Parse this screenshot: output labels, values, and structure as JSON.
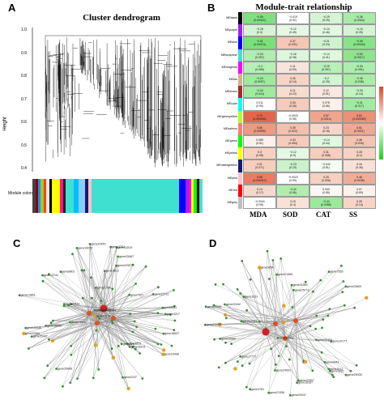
{
  "panels": {
    "a": {
      "letter": "A",
      "title": "Cluster dendrogram",
      "ylabel": "Height",
      "yticks": [
        "1.0",
        "0.9",
        "0.8",
        "0.7",
        "0.6",
        "0.5",
        "0.4"
      ],
      "module_label": "Module colors"
    },
    "b": {
      "letter": "B",
      "title": "Module-trait relationship",
      "columns": [
        "MDA",
        "SOD",
        "CAT",
        "SS"
      ],
      "scale_ticks": [
        "1",
        "0.5",
        "0",
        "-0.5",
        "-1"
      ],
      "rows": [
        {
          "name": "MEblack",
          "color": "#000000",
          "cells": [
            [
              "−0.59",
              "(0.00022)"
            ],
            [
              "−0.019",
              "(0.92)"
            ],
            [
              "−0.19",
              "(0.29)"
            ],
            [
              "−0.36",
              "(0.0064)"
            ]
          ],
          "fills": [
            "#7ee07e",
            "#ffffff",
            "#d4f4d4",
            "#a6eba6"
          ]
        },
        {
          "name": "MEpurple",
          "color": "#a020f0",
          "cells": [
            [
              "−0.18",
              "(0.3)"
            ],
            [
              "−0.12",
              "(0.49)"
            ],
            [
              "−0.13",
              "(0.46)"
            ],
            [
              "−0.19",
              "(0.28)"
            ]
          ],
          "fills": [
            "#d4f4d4",
            "#e4f8e4",
            "#e2f8e2",
            "#d4f4d4"
          ]
        },
        {
          "name": "MEblue",
          "color": "#0000ff",
          "cells": [
            [
              "−0.61",
              "(0.00013)"
            ],
            [
              "0.37",
              "(0.031)"
            ],
            [
              "−0.21",
              "(0.23)"
            ],
            [
              "−0.55",
              "(0.00034)"
            ]
          ],
          "fills": [
            "#7ae07a",
            "#f4c6b4",
            "#cff3cf",
            "#88e488"
          ]
        },
        {
          "name": "MEturquoise",
          "color": "#40e0d0",
          "cells": [
            [
              "−0.33",
              "(0.057)"
            ],
            [
              "−0.16",
              "(0.38)"
            ],
            [
              "−0.14",
              "(0.41)"
            ],
            [
              "−0.52",
              "(0.0017)"
            ]
          ],
          "fills": [
            "#aeeeae",
            "#dcf6dc",
            "#e0f7e0",
            "#8ee58e"
          ]
        },
        {
          "name": "MEmagenta",
          "color": "#ff00ff",
          "cells": [
            [
              "−0.3",
              "(0.085)"
            ],
            [
              "0.11",
              "(0.53)"
            ],
            [
              "−0.29",
              "(0.097)"
            ],
            [
              "−0.34",
              "(0.051)"
            ]
          ],
          "fills": [
            "#b6f0b6",
            "#f8e4dc",
            "#b8f0b8",
            "#acedac"
          ]
        },
        {
          "name": "MEtan",
          "color": "#d2b48c",
          "cells": [
            [
              "−0.43",
              "(0.0097)"
            ],
            [
              "0.26",
              "(0.14)"
            ],
            [
              "−0.2",
              "(0.25)"
            ],
            [
              "−0.36",
              "(0.038)"
            ]
          ],
          "fills": [
            "#9ee99e",
            "#f6d4c6",
            "#d2f4d2",
            "#a8eca8"
          ]
        },
        {
          "name": "MEbrown",
          "color": "#a52a2a",
          "cells": [
            [
              "−0.42",
              "(0.014)"
            ],
            [
              "0.21",
              "(0.22)"
            ],
            [
              "0.12",
              "(0.51)"
            ],
            [
              "−0.26",
              "(0.14)"
            ]
          ],
          "fills": [
            "#a0eaa0",
            "#f7dcd0",
            "#f9e8e0",
            "#c2f2c2"
          ]
        },
        {
          "name": "MEcyan",
          "color": "#00ffff",
          "cells": [
            [
              "0.011",
              "(0.95)"
            ],
            [
              "0.33",
              "(0.06)"
            ],
            [
              "0.078",
              "(0.66)"
            ],
            [
              "−0.41",
              "(0.017)"
            ]
          ],
          "fills": [
            "#ffffff",
            "#f5ccbc",
            "#fbf0ea",
            "#a2eaa2"
          ]
        },
        {
          "name": "MEgreenyellow",
          "color": "#adff2f",
          "cells": [
            [
              "0.79",
              "(0.000052)"
            ],
            [
              "−0.0043",
              "(0.98)"
            ],
            [
              "0.52",
              "(0.0014)"
            ],
            [
              "0.62",
              "(0.000083)"
            ]
          ],
          "fills": [
            "#e4664a",
            "#ffffff",
            "#efa690",
            "#ec9078"
          ]
        },
        {
          "name": "MEsalmon",
          "color": "#fa8072",
          "cells": [
            [
              "0.56",
              "(0.00059)"
            ],
            [
              "0.39",
              "(0.022)"
            ],
            [
              "0.23",
              "(0.18)"
            ],
            [
              "0.51",
              "(0.0021)"
            ]
          ],
          "fills": [
            "#ee9a82",
            "#f3c0ae",
            "#f6d6c8",
            "#efa892"
          ]
        },
        {
          "name": "MEgreen",
          "color": "#00ff00",
          "cells": [
            [
              "0.089",
              "(0.61)"
            ],
            [
              "0.33",
              "(0.054)"
            ],
            [
              "−0.14",
              "(0.44)"
            ],
            [
              "0.38",
              "(0.026)"
            ]
          ],
          "fills": [
            "#fbf0ea",
            "#f5ccbc",
            "#e0f7e0",
            "#f4c4b2"
          ]
        },
        {
          "name": "MEyellow",
          "color": "#ffff00",
          "cells": [
            [
              "0.3",
              "(0.08)"
            ],
            [
              "−0.12",
              "(0.5)"
            ],
            [
              "0.31",
              "(0.068)"
            ],
            [
              "0.28",
              "(0.1)"
            ]
          ],
          "fills": [
            "#f6d0c0",
            "#e4f8e4",
            "#f6ceBe",
            "#f6d2c4"
          ]
        },
        {
          "name": "MEmidnightblue",
          "color": "#191970",
          "cells": [
            [
              "0.31",
              "(0.071)"
            ],
            [
              "−0.23",
              "(0.19)"
            ],
            [
              "−0.042",
              "(0.81)"
            ],
            [
              "0.16",
              "(0.36)"
            ]
          ],
          "fills": [
            "#f6ceBe",
            "#cbf2cb",
            "#f4fcf4",
            "#f8e2d8"
          ]
        },
        {
          "name": "MEpink",
          "color": "#ffc0cb",
          "cells": [
            [
              "0.68",
              "(0.000012)"
            ],
            [
              "−0.0023",
              "(0.99)"
            ],
            [
              "0.29",
              "(0.096)"
            ],
            [
              "0.48",
              "(0.0036)"
            ]
          ],
          "fills": [
            "#e97c62",
            "#ffffff",
            "#f6d0c0",
            "#f0ae98"
          ]
        },
        {
          "name": "MEred",
          "color": "#ff0000",
          "cells": [
            [
              "0.24",
              "(0.17)"
            ],
            [
              "−0.32",
              "(0.06)"
            ],
            [
              "0.033",
              "(0.85)"
            ],
            [
              "0.07",
              "(0.69)"
            ]
          ],
          "fills": [
            "#f7d8cc",
            "#b0eeb0",
            "#fdf7f4",
            "#fbf2ec"
          ]
        },
        {
          "name": "MEgrey",
          "color": "#bebebe",
          "cells": [
            [
              "−0.0044",
              "(0.98)"
            ],
            [
              "0.15",
              "(0.4)"
            ],
            [
              "−0.44",
              "(0.0088)"
            ],
            [
              "0.26",
              "(0.14)"
            ]
          ],
          "fills": [
            "#ffffff",
            "#f8e2d8",
            "#9ce99c",
            "#f7d4c6"
          ]
        }
      ]
    },
    "c": {
      "letter": "C"
    },
    "d": {
      "letter": "D"
    }
  },
  "network_c": {
    "labels": [
      "gene22707",
      "gene11519",
      "gene17137",
      "gene18066",
      "gene20117",
      "gene19073",
      "gene14470",
      "gene22560",
      "gene8641",
      "gene20046",
      "gene13044",
      "gene3612",
      "gene22907",
      "gene7327",
      "gene25487",
      "gene3761",
      "gene19498",
      "gene20066",
      "gene22541",
      "gene24516",
      "gene25487",
      "gene16697",
      "gene7251",
      "gene26101",
      "gene3217",
      "gene13741",
      "gene8601",
      "gene22711",
      "gene13861",
      "gene20443",
      "gene2237"
    ]
  },
  "network_d": {
    "labels": [
      "gene21383",
      "gene21565",
      "gene24001",
      "gene18187",
      "gene3512",
      "gene3291",
      "gene23600",
      "gene22442",
      "gene10002",
      "gene25005",
      "gene21356",
      "gene7555",
      "gene22907",
      "gene3854",
      "gene22560",
      "gene26281",
      "gene10177",
      "gene17041",
      "gene17777",
      "gene25713",
      "gene3781",
      "gene9443",
      "gene3291",
      "gene20047",
      "gene20453",
      "gene24005"
    ]
  }
}
